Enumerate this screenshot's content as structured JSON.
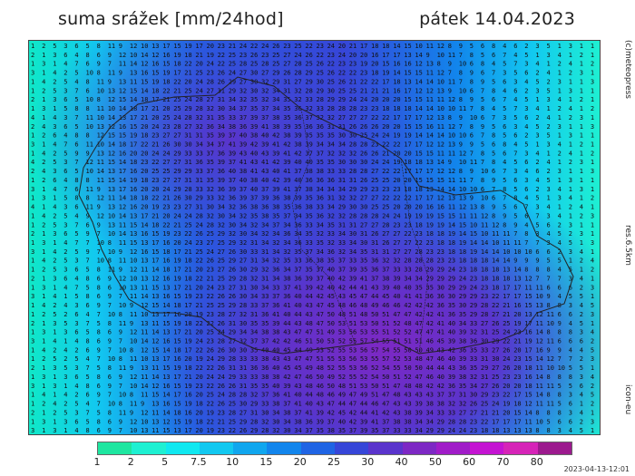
{
  "header": {
    "title": "suma srážek [mm/24hod]",
    "date": "pátek 14.04.2023"
  },
  "side_labels": {
    "copyright": "(c)meteopress",
    "resolution": "res.6.5km",
    "model": "icon-eu"
  },
  "legend": {
    "thresholds": [
      "1",
      "2",
      "5",
      "7.5",
      "10",
      "15",
      "20",
      "25",
      "30",
      "40",
      "50",
      "60",
      "70",
      "80"
    ],
    "colors": [
      "#1ee6a0",
      "#1ef0d2",
      "#10e8f0",
      "#12c8f0",
      "#10a6ee",
      "#1285ec",
      "#1f64e4",
      "#3646d8",
      "#5a34cc",
      "#7d28c4",
      "#a01cc8",
      "#c414d2",
      "#d624b8",
      "#9c1a8e"
    ]
  },
  "timestamp": "2023-04-13-12:01",
  "map": {
    "description_colors": {
      "low": "#1ee6a0",
      "mid": "#1f64e4",
      "high": "#7d28c4"
    }
  }
}
